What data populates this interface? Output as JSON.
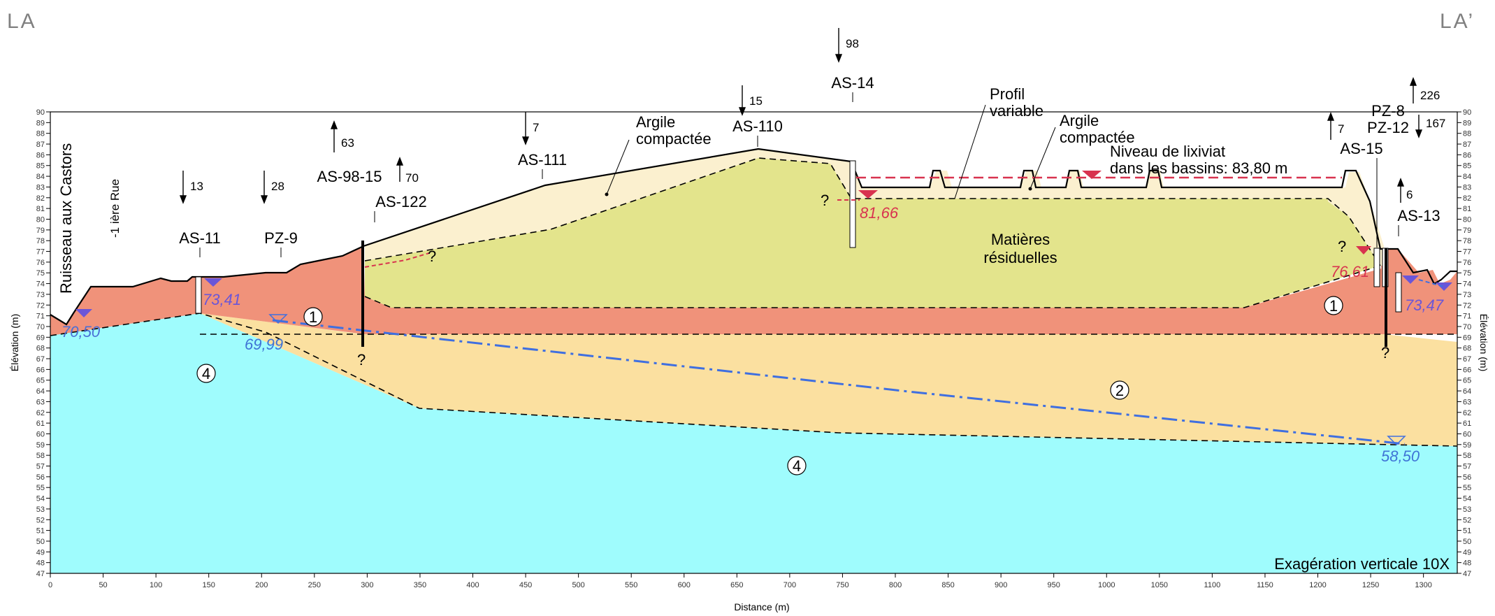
{
  "corner_left": "LA",
  "corner_right": "LA’",
  "x_axis_label": "Distance (m)",
  "y_axis_label_left": "Élévation (m)",
  "y_axis_label_right": "Élévation (m)",
  "x_ticks": [
    "0",
    "50",
    "100",
    "150",
    "200",
    "250",
    "300",
    "350",
    "400",
    "450",
    "500",
    "550",
    "600",
    "650",
    "700",
    "750",
    "800",
    "850",
    "900",
    "950",
    "1000",
    "1050",
    "1100",
    "1150",
    "1200",
    "1250",
    "1300"
  ],
  "y_range": [
    47,
    90
  ],
  "x_range": [
    0,
    1332
  ],
  "labels": {
    "stream": "Ruisseau aux Castors",
    "road": "-1 ière Rue",
    "profil_1": "Profil",
    "profil_2": "variable",
    "argile_left_1": "Argile",
    "argile_left_2": "compactée",
    "argile_right_1": "Argile",
    "argile_right_2": "compactée",
    "lixiviat_1": "Niveau de lixiviat",
    "lixiviat_2": "dans les bassins: 83,80 m",
    "matieres_1": "Matières",
    "matieres_2": "résiduelles",
    "exaggeration": "Exagération verticale 10X",
    "question": "?"
  },
  "units": [
    "1",
    "1",
    "2",
    "4",
    "4"
  ],
  "wells": [
    {
      "name": "AS-11",
      "arrow": "13",
      "direction": "down"
    },
    {
      "name": "PZ-9",
      "arrow": "28",
      "direction": "down"
    },
    {
      "name": "AS-98-15",
      "arrow": "63",
      "direction": "up"
    },
    {
      "name": "AS-122",
      "arrow": "70",
      "direction": "up"
    },
    {
      "name": "AS-111",
      "arrow": "7",
      "direction": "down"
    },
    {
      "name": "AS-110",
      "arrow": "15",
      "direction": "down"
    },
    {
      "name": "AS-14",
      "arrow": "98",
      "direction": "down"
    },
    {
      "name": "AS-15",
      "arrow": "7",
      "direction": "up"
    },
    {
      "name": "PZ-8",
      "arrow": "226",
      "direction": "up"
    },
    {
      "name": "PZ-12",
      "arrow": "167",
      "direction": "down"
    },
    {
      "name": "AS-13",
      "arrow": "6",
      "direction": "up"
    }
  ],
  "water_levels": [
    {
      "value": "70,50",
      "color": "#4a6fd6"
    },
    {
      "value": "73,41",
      "color": "#6a56d8"
    },
    {
      "value": "69,99",
      "color": "#3f74d6"
    },
    {
      "value": "81,66",
      "color": "#d8334f"
    },
    {
      "value": "76,61",
      "color": "#d8334f"
    },
    {
      "value": "73,47",
      "color": "#6a56d8"
    },
    {
      "value": "58,50",
      "color": "#3f74d6"
    }
  ],
  "colors": {
    "unit_1_fill": "#f0927a",
    "unit_2_fill": "#fbe0a0",
    "unit_4_fill": "#9ffcfd",
    "waste_fill": "#e3e48c",
    "clay_fill": "#fbf0cf",
    "leachate_line": "#d8334f",
    "piezometric_line": "#3f6fe0"
  }
}
